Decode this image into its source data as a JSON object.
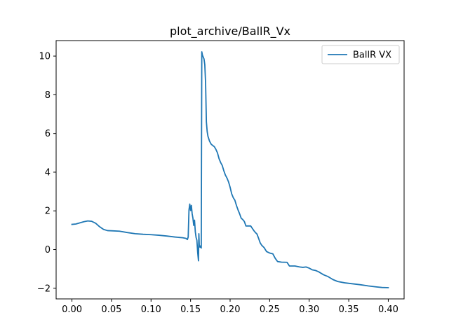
{
  "chart_data": {
    "type": "line",
    "title": "plot_archive/BallR_Vx",
    "xlabel": "",
    "ylabel": "",
    "xlim": [
      -0.02,
      0.42
    ],
    "ylim": [
      -2.55,
      10.8
    ],
    "x_ticks": [
      0.0,
      0.05,
      0.1,
      0.15,
      0.2,
      0.25,
      0.3,
      0.35,
      0.4
    ],
    "x_tick_labels": [
      "0.00",
      "0.05",
      "0.10",
      "0.15",
      "0.20",
      "0.25",
      "0.30",
      "0.35",
      "0.40"
    ],
    "y_ticks": [
      -2,
      0,
      2,
      4,
      6,
      8,
      10
    ],
    "y_tick_labels": [
      "−2",
      "0",
      "2",
      "4",
      "6",
      "8",
      "10"
    ],
    "grid": false,
    "legend": {
      "position": "top-right"
    },
    "series": [
      {
        "name": "BallR VX",
        "color": "#1f77b4",
        "points": [
          [
            0.0,
            1.3
          ],
          [
            0.005,
            1.32
          ],
          [
            0.01,
            1.38
          ],
          [
            0.015,
            1.44
          ],
          [
            0.02,
            1.48
          ],
          [
            0.025,
            1.46
          ],
          [
            0.03,
            1.36
          ],
          [
            0.035,
            1.18
          ],
          [
            0.04,
            1.04
          ],
          [
            0.045,
            0.98
          ],
          [
            0.05,
            0.97
          ],
          [
            0.06,
            0.95
          ],
          [
            0.07,
            0.88
          ],
          [
            0.08,
            0.82
          ],
          [
            0.09,
            0.79
          ],
          [
            0.1,
            0.77
          ],
          [
            0.11,
            0.74
          ],
          [
            0.12,
            0.7
          ],
          [
            0.13,
            0.65
          ],
          [
            0.14,
            0.61
          ],
          [
            0.144,
            0.58
          ],
          [
            0.146,
            0.52
          ],
          [
            0.147,
            0.65
          ],
          [
            0.148,
            2.05
          ],
          [
            0.149,
            2.35
          ],
          [
            0.15,
            2.02
          ],
          [
            0.151,
            2.28
          ],
          [
            0.152,
            1.85
          ],
          [
            0.153,
            1.62
          ],
          [
            0.154,
            1.25
          ],
          [
            0.155,
            1.52
          ],
          [
            0.156,
            0.92
          ],
          [
            0.157,
            0.62
          ],
          [
            0.158,
            0.48
          ],
          [
            0.159,
            -0.15
          ],
          [
            0.16,
            -0.58
          ],
          [
            0.1605,
            0.82
          ],
          [
            0.161,
            0.22
          ],
          [
            0.162,
            0.12
          ],
          [
            0.163,
            0.2
          ],
          [
            0.1635,
            0.08
          ],
          [
            0.1642,
            10.22
          ],
          [
            0.165,
            10.05
          ],
          [
            0.166,
            9.95
          ],
          [
            0.167,
            9.85
          ],
          [
            0.168,
            9.55
          ],
          [
            0.169,
            8.6
          ],
          [
            0.17,
            6.6
          ],
          [
            0.171,
            6.1
          ],
          [
            0.172,
            5.85
          ],
          [
            0.174,
            5.6
          ],
          [
            0.176,
            5.45
          ],
          [
            0.178,
            5.38
          ],
          [
            0.18,
            5.32
          ],
          [
            0.182,
            5.18
          ],
          [
            0.184,
            5.0
          ],
          [
            0.186,
            4.7
          ],
          [
            0.188,
            4.5
          ],
          [
            0.19,
            4.35
          ],
          [
            0.192,
            4.08
          ],
          [
            0.194,
            3.85
          ],
          [
            0.196,
            3.7
          ],
          [
            0.198,
            3.5
          ],
          [
            0.2,
            3.22
          ],
          [
            0.202,
            2.88
          ],
          [
            0.204,
            2.68
          ],
          [
            0.206,
            2.55
          ],
          [
            0.208,
            2.28
          ],
          [
            0.21,
            2.05
          ],
          [
            0.212,
            1.85
          ],
          [
            0.214,
            1.62
          ],
          [
            0.216,
            1.55
          ],
          [
            0.218,
            1.45
          ],
          [
            0.22,
            1.22
          ],
          [
            0.226,
            1.22
          ],
          [
            0.228,
            1.1
          ],
          [
            0.23,
            0.98
          ],
          [
            0.232,
            0.88
          ],
          [
            0.234,
            0.8
          ],
          [
            0.236,
            0.58
          ],
          [
            0.238,
            0.35
          ],
          [
            0.24,
            0.22
          ],
          [
            0.243,
            0.1
          ],
          [
            0.246,
            -0.1
          ],
          [
            0.25,
            -0.18
          ],
          [
            0.254,
            -0.22
          ],
          [
            0.257,
            -0.45
          ],
          [
            0.26,
            -0.62
          ],
          [
            0.265,
            -0.65
          ],
          [
            0.272,
            -0.66
          ],
          [
            0.275,
            -0.85
          ],
          [
            0.282,
            -0.85
          ],
          [
            0.288,
            -0.9
          ],
          [
            0.292,
            -0.92
          ],
          [
            0.296,
            -0.9
          ],
          [
            0.3,
            -0.96
          ],
          [
            0.304,
            -1.05
          ],
          [
            0.308,
            -1.08
          ],
          [
            0.312,
            -1.15
          ],
          [
            0.318,
            -1.3
          ],
          [
            0.324,
            -1.4
          ],
          [
            0.33,
            -1.55
          ],
          [
            0.336,
            -1.65
          ],
          [
            0.345,
            -1.72
          ],
          [
            0.355,
            -1.77
          ],
          [
            0.365,
            -1.82
          ],
          [
            0.375,
            -1.88
          ],
          [
            0.385,
            -1.93
          ],
          [
            0.392,
            -1.96
          ],
          [
            0.4,
            -1.97
          ]
        ]
      }
    ]
  }
}
